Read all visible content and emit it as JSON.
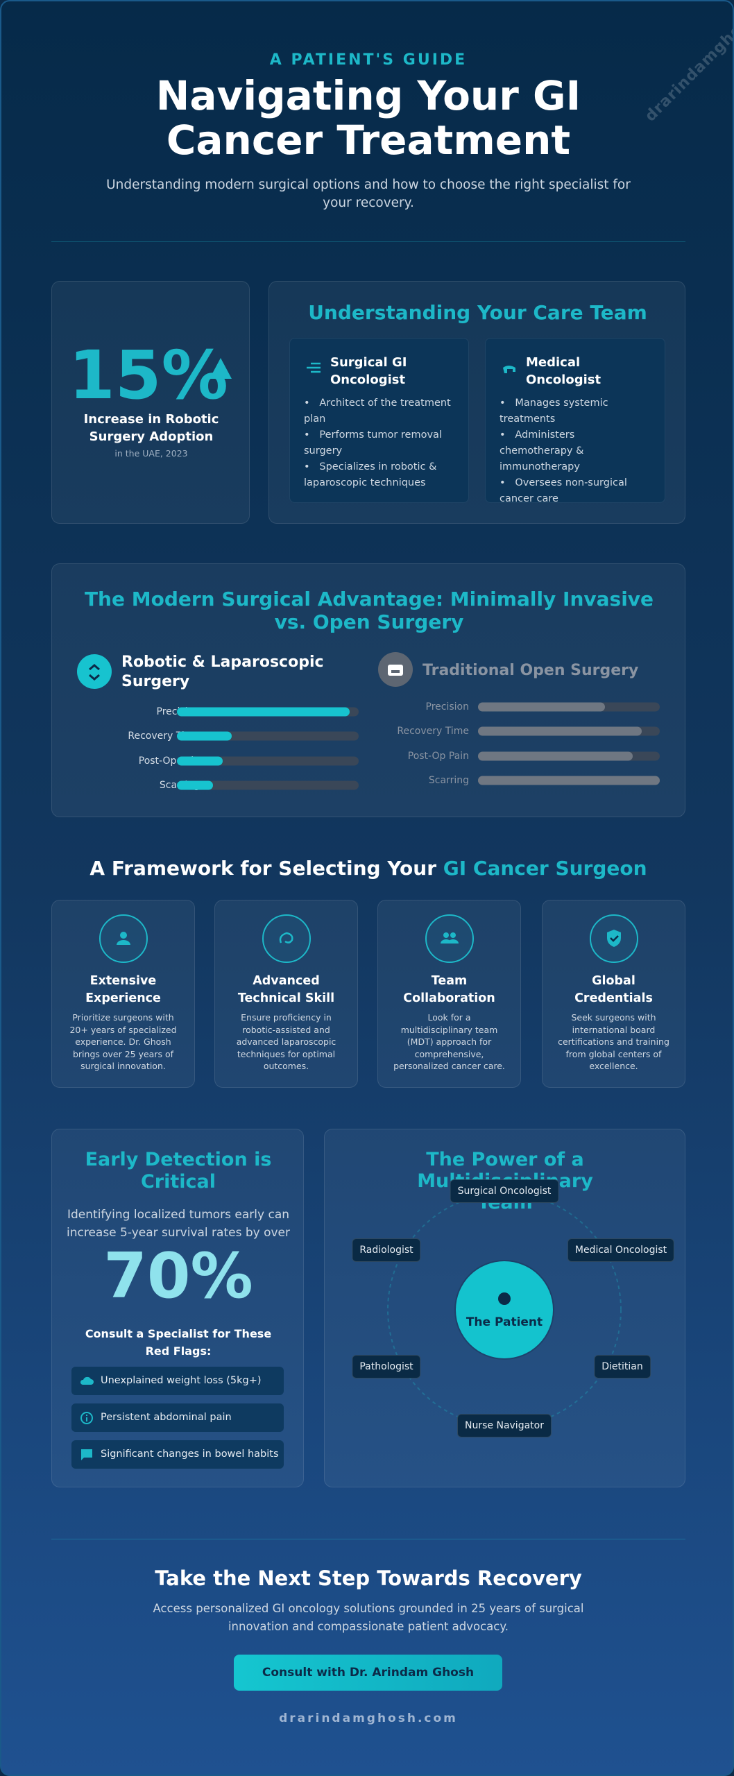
{
  "header": {
    "eyebrow": "A PATIENT'S GUIDE",
    "title": "Navigating Your GI Cancer Treatment",
    "subtitle": "Understanding modern surgical options and how to choose the right specialist for your recovery.",
    "watermark": "drarindamghosh"
  },
  "stat": {
    "value": "15%",
    "label": "Increase in Robotic Surgery Adoption",
    "note": "in the UAE, 2023"
  },
  "care_team": {
    "title": "Understanding Your Care Team",
    "roles": [
      {
        "title": "Surgical GI Oncologist",
        "bullets": [
          "Architect of the treatment plan",
          "Performs tumor removal surgery",
          "Specializes in robotic & laparoscopic techniques"
        ]
      },
      {
        "title": "Medical Oncologist",
        "bullets": [
          "Manages systemic treatments",
          "Administers chemotherapy & immunotherapy",
          "Oversees non-surgical cancer care"
        ]
      }
    ]
  },
  "comparison": {
    "title": "The Modern Surgical Advantage: Minimally Invasive vs. Open Surgery",
    "xlim": [
      0,
      100
    ],
    "columns": [
      {
        "title": "Robotic & Laparoscopic Surgery",
        "color": "#17c3cf",
        "metrics": [
          {
            "label": "Precision",
            "value": 95
          },
          {
            "label": "Recovery Time",
            "value": 30
          },
          {
            "label": "Post-Op Pain",
            "value": 25
          },
          {
            "label": "Scarring",
            "value": 20
          }
        ]
      },
      {
        "title": "Traditional Open Surgery",
        "color": "#6f7782",
        "metrics": [
          {
            "label": "Precision",
            "value": 70
          },
          {
            "label": "Recovery Time",
            "value": 90
          },
          {
            "label": "Post-Op Pain",
            "value": 85
          },
          {
            "label": "Scarring",
            "value": 100
          }
        ]
      }
    ]
  },
  "framework": {
    "title": "A Framework for Selecting Your ",
    "title_highlight": "GI Cancer Surgeon",
    "cards": [
      {
        "title": "Extensive Experience",
        "text": "Prioritize surgeons with 20+ years of specialized experience. Dr. Ghosh brings over 25 years of surgical innovation."
      },
      {
        "title": "Advanced Technical Skill",
        "text": "Ensure proficiency in robotic-assisted and advanced laparoscopic techniques for optimal outcomes."
      },
      {
        "title": "Team Collaboration",
        "text": "Look for a multidisciplinary team (MDT) approach for comprehensive, personalized cancer care."
      },
      {
        "title": "Global Credentials",
        "text": "Seek surgeons with international board certifications and training from global centers of excellence."
      }
    ]
  },
  "early_detection": {
    "title": "Early Detection is Critical",
    "text": "Identifying localized tumors early can increase 5-year survival rates by over",
    "value": "70%",
    "flags_title": "Consult a Specialist for These Red Flags:",
    "flags": [
      "Unexplained weight loss (5kg+)",
      "Persistent abdominal pain",
      "Significant changes in bowel habits"
    ]
  },
  "team": {
    "title": "The Power of a Multidisciplinary Team",
    "center": "The Patient",
    "nodes": [
      "Surgical Oncologist",
      "Medical Oncologist",
      "Dietitian",
      "Nurse Navigator",
      "Pathologist",
      "Radiologist"
    ]
  },
  "cta": {
    "title": "Take the Next Step Towards Recovery",
    "text": "Access personalized GI oncology solutions grounded in 25 years of surgical innovation and compassionate patient advocacy.",
    "button": "Consult with Dr. Arindam Ghosh",
    "url": "drarindamghosh.com"
  }
}
